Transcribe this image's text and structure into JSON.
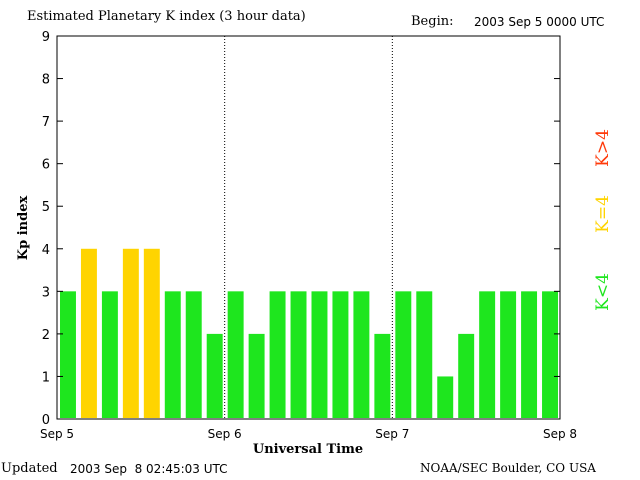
{
  "header": {
    "title": "Estimated Planetary K index (3 hour data)",
    "begin_label": "Begin:",
    "begin_value": "2003 Sep 5 0000 UTC"
  },
  "footer": {
    "updated_label": "Updated",
    "updated_value": "2003 Sep  8 02:45:03 UTC",
    "credit": "NOAA/SEC Boulder, CO USA"
  },
  "legend": [
    {
      "label": "K>4",
      "color": "#ff3a0a"
    },
    {
      "label": "K=4",
      "color": "#ffd400"
    },
    {
      "label": "K<4",
      "color": "#1ee61e"
    }
  ],
  "chart_data": {
    "type": "bar",
    "title": "Estimated Planetary K index (3 hour data)",
    "xlabel": "Universal Time",
    "ylabel": "Kp index",
    "ylim": [
      0,
      9
    ],
    "yticks": [
      "0",
      "1",
      "2",
      "3",
      "4",
      "5",
      "6",
      "7",
      "8",
      "9"
    ],
    "x_tick_labels": [
      "Sep 5",
      "Sep 6",
      "Sep 7",
      "Sep 8"
    ],
    "day_separators": true,
    "values": [
      3,
      4,
      3,
      4,
      4,
      3,
      3,
      2,
      3,
      2,
      3,
      3,
      3,
      3,
      3,
      2,
      3,
      3,
      1,
      2,
      3,
      3,
      3,
      3
    ],
    "colors": {
      "low": "#1ee61e",
      "equal": "#ffd400",
      "high": "#ff3a0a"
    }
  }
}
